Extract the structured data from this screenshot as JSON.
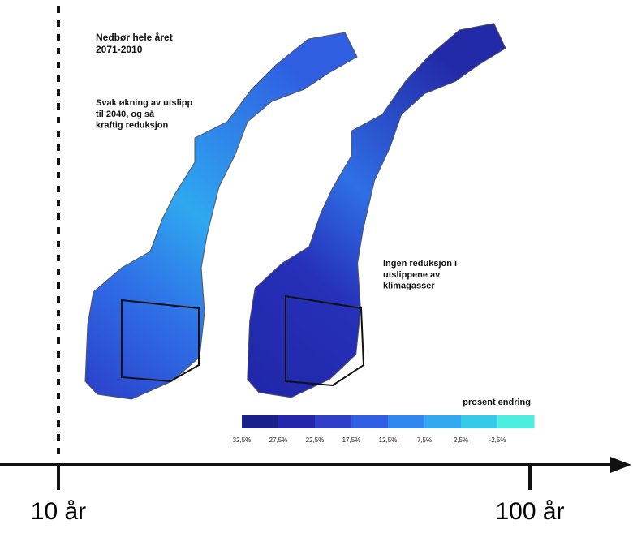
{
  "map": {
    "title": "Nedbør hele året\n2071-2010",
    "left_caption": "Svak økning av utslipp\ntil 2040, og så\nkraftig reduksjon",
    "right_caption": "Ingen reduksjon i\nutslippene av\nklimagasser",
    "legend": {
      "title": "prosent endring",
      "labels": [
        "32,5%",
        "27,5%",
        "22,5%",
        "17,5%",
        "12,5%",
        "7,5%",
        "2,5%",
        "-2,5%"
      ],
      "colors": [
        "#1b1f8c",
        "#2626ad",
        "#2f3fc8",
        "#2f5fe0",
        "#2f86ee",
        "#2fa8f0",
        "#35cbe8",
        "#4deee0"
      ]
    }
  },
  "timeline": {
    "start_label": "10 år",
    "end_label": "100 år"
  }
}
